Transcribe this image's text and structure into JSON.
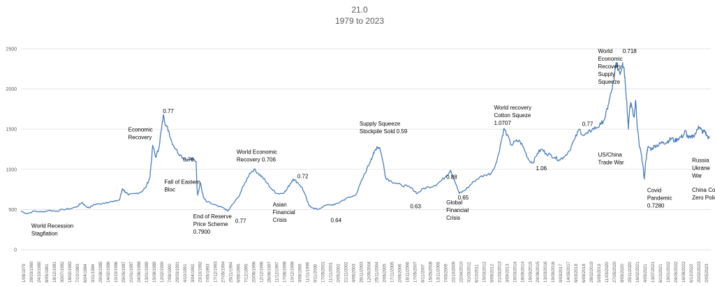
{
  "chart_data": {
    "type": "line",
    "title": "21.0",
    "subtitle": "1979 to 2023",
    "xlabel": "",
    "ylabel": "",
    "ylim": [
      0,
      2500
    ],
    "yticks": [
      0,
      500,
      1000,
      1500,
      2000,
      2500
    ],
    "grid": true,
    "legend": "none",
    "line_color": "#4a7ebb",
    "x_range": [
      "1/08/1979",
      "2/05/2023"
    ],
    "xticks": [
      "1/08/1979",
      "28/03/1980",
      "24/10/1980",
      "8/05/1981",
      "18/12/1981",
      "30/07/1982",
      "18/02/1983",
      "7/10/1983",
      "6/04/1984",
      "3/11/1984",
      "29/08/1985",
      "14/02/1986",
      "10/10/1986",
      "29/05/1987",
      "21/01/1987",
      "24/06/1988",
      "13/01/1989",
      "15/08/1989",
      "12/02/1990",
      "7/09/1990",
      "29/03/1991",
      "4/10/1991",
      "3/04/1992",
      "23/10/1992",
      "7/05/1993",
      "17/12/1993",
      "27/05/1994",
      "25/11/1994",
      "9/06/1995",
      "7/12/1995",
      "20/06/1996",
      "12/12/1996",
      "26/06/1997",
      "11/12/1997",
      "17/06/1998",
      "10/12/1998",
      "3/06/1999",
      "11/11/1999",
      "9/11/2000",
      "17/05/2001",
      "11/11/2001",
      "2/05/2002",
      "21/11/2002",
      "4/06/2003",
      "26/11/2003",
      "12/05/2004",
      "25/11/2004",
      "2/06/2005",
      "17/11/2005",
      "2/06/2006",
      "16/11/2006",
      "17/05/2007",
      "8/11/2007",
      "15/05/2008",
      "13/11/2008",
      "7/05/2009",
      "22/10/2009",
      "22/04/2010",
      "31/03/2011",
      "6/10/2011",
      "15/03/2012",
      "9/09/2012",
      "21/03/2013",
      "3/09/2013",
      "19/03/2014",
      "18/09/2014",
      "19/03/2015",
      "24/08/2015",
      "13/03/2016",
      "19/09/2016",
      "9/03/2017",
      "14/09/2017",
      "8/03/2018",
      "6/09/2018",
      "28/02/2019",
      "5/09/2019",
      "11/03/2020",
      "27/05/2020",
      "8/09/2020",
      "25/11/2020",
      "16/02/2021",
      "4/05/2021",
      "13/07/2021",
      "6/10/2021",
      "19/01/2022",
      "24/05/2022",
      "16/08/2022",
      "6/12/2022",
      "20/02/2023",
      "2/05/2023"
    ],
    "series": [
      {
        "values": [
          [
            1979.58,
            480
          ],
          [
            1980.0,
            450
          ],
          [
            1980.5,
            480
          ],
          [
            1981.0,
            470
          ],
          [
            1981.5,
            490
          ],
          [
            1982.0,
            480
          ],
          [
            1982.5,
            500
          ],
          [
            1983.0,
            510
          ],
          [
            1983.5,
            540
          ],
          [
            1983.8,
            590
          ],
          [
            1984.0,
            550
          ],
          [
            1984.3,
            520
          ],
          [
            1984.6,
            560
          ],
          [
            1985.0,
            570
          ],
          [
            1985.5,
            590
          ],
          [
            1986.0,
            600
          ],
          [
            1986.4,
            620
          ],
          [
            1986.6,
            760
          ],
          [
            1986.8,
            720
          ],
          [
            1987.0,
            680
          ],
          [
            1987.5,
            700
          ],
          [
            1987.9,
            720
          ],
          [
            1988.2,
            770
          ],
          [
            1988.5,
            900
          ],
          [
            1988.7,
            1300
          ],
          [
            1988.9,
            1150
          ],
          [
            1989.1,
            1250
          ],
          [
            1989.3,
            1500
          ],
          [
            1989.45,
            1680
          ],
          [
            1989.6,
            1550
          ],
          [
            1989.8,
            1480
          ],
          [
            1990.0,
            1350
          ],
          [
            1990.3,
            1250
          ],
          [
            1990.6,
            1180
          ],
          [
            1990.9,
            1130
          ],
          [
            1991.2,
            1120
          ],
          [
            1991.5,
            1120
          ],
          [
            1991.7,
            1100
          ],
          [
            1991.75,
            800
          ],
          [
            1991.8,
            680
          ],
          [
            1992.0,
            830
          ],
          [
            1992.2,
            650
          ],
          [
            1992.4,
            600
          ],
          [
            1992.8,
            570
          ],
          [
            1993.2,
            540
          ],
          [
            1993.6,
            520
          ],
          [
            1993.9,
            480
          ],
          [
            1994.2,
            560
          ],
          [
            1994.6,
            650
          ],
          [
            1995.0,
            800
          ],
          [
            1995.4,
            950
          ],
          [
            1995.7,
            1000
          ],
          [
            1996.0,
            950
          ],
          [
            1996.3,
            900
          ],
          [
            1996.6,
            830
          ],
          [
            1997.0,
            740
          ],
          [
            1997.3,
            700
          ],
          [
            1997.6,
            700
          ],
          [
            1997.9,
            730
          ],
          [
            1998.2,
            820
          ],
          [
            1998.4,
            880
          ],
          [
            1998.7,
            840
          ],
          [
            1999.0,
            780
          ],
          [
            1999.2,
            700
          ],
          [
            1999.5,
            550
          ],
          [
            1999.8,
            520
          ],
          [
            2000.1,
            500
          ],
          [
            2000.5,
            540
          ],
          [
            2000.9,
            560
          ],
          [
            2001.3,
            560
          ],
          [
            2001.7,
            600
          ],
          [
            2002.1,
            640
          ],
          [
            2002.5,
            660
          ],
          [
            2002.8,
            700
          ],
          [
            2003.2,
            880
          ],
          [
            2003.5,
            1000
          ],
          [
            2003.8,
            1130
          ],
          [
            2004.0,
            1200
          ],
          [
            2004.2,
            1280
          ],
          [
            2004.4,
            1270
          ],
          [
            2004.6,
            1120
          ],
          [
            2004.8,
            900
          ],
          [
            2005.1,
            860
          ],
          [
            2005.5,
            830
          ],
          [
            2005.9,
            800
          ],
          [
            2006.3,
            790
          ],
          [
            2006.7,
            750
          ],
          [
            2007.0,
            700
          ],
          [
            2007.4,
            760
          ],
          [
            2007.8,
            780
          ],
          [
            2008.2,
            800
          ],
          [
            2008.6,
            850
          ],
          [
            2009.0,
            920
          ],
          [
            2009.3,
            990
          ],
          [
            2009.6,
            850
          ],
          [
            2009.9,
            700
          ],
          [
            2010.2,
            730
          ],
          [
            2010.6,
            790
          ],
          [
            2010.9,
            850
          ],
          [
            2011.3,
            900
          ],
          [
            2011.7,
            930
          ],
          [
            2012.1,
            950
          ],
          [
            2012.5,
            1100
          ],
          [
            2012.8,
            1350
          ],
          [
            2013.0,
            1510
          ],
          [
            2013.2,
            1430
          ],
          [
            2013.5,
            1300
          ],
          [
            2013.8,
            1350
          ],
          [
            2014.1,
            1350
          ],
          [
            2014.4,
            1250
          ],
          [
            2014.7,
            1120
          ],
          [
            2015.0,
            1080
          ],
          [
            2015.3,
            1200
          ],
          [
            2015.6,
            1250
          ],
          [
            2015.9,
            1200
          ],
          [
            2016.2,
            1180
          ],
          [
            2016.5,
            1150
          ],
          [
            2016.8,
            1120
          ],
          [
            2017.1,
            1150
          ],
          [
            2017.5,
            1230
          ],
          [
            2017.9,
            1380
          ],
          [
            2018.2,
            1500
          ],
          [
            2018.5,
            1420
          ],
          [
            2018.8,
            1450
          ],
          [
            2019.1,
            1500
          ],
          [
            2019.4,
            1520
          ],
          [
            2019.7,
            1560
          ],
          [
            2020.0,
            1650
          ],
          [
            2020.2,
            1800
          ],
          [
            2020.4,
            1950
          ],
          [
            2020.6,
            2100
          ],
          [
            2020.75,
            2330
          ],
          [
            2020.9,
            2250
          ],
          [
            2021.05,
            2200
          ],
          [
            2021.2,
            2330
          ],
          [
            2021.3,
            2260
          ],
          [
            2021.4,
            2050
          ],
          [
            2021.5,
            1800
          ],
          [
            2021.6,
            1500
          ],
          [
            2021.7,
            1780
          ],
          [
            2021.8,
            1820
          ],
          [
            2022.0,
            1650
          ],
          [
            2022.1,
            1860
          ],
          [
            2022.2,
            1550
          ],
          [
            2022.35,
            1300
          ],
          [
            2022.5,
            1180
          ],
          [
            2022.6,
            1050
          ],
          [
            2022.7,
            880
          ],
          [
            2022.8,
            1100
          ],
          [
            2022.9,
            1240
          ],
          [
            2023.0,
            1280
          ],
          [
            2023.2,
            1250
          ],
          [
            2023.4,
            1290
          ],
          [
            2023.6,
            1300
          ],
          [
            2023.8,
            1320
          ],
          [
            2024.0,
            1340
          ],
          [
            2024.2,
            1330
          ],
          [
            2024.4,
            1360
          ],
          [
            2024.6,
            1390
          ],
          [
            2024.8,
            1350
          ],
          [
            2025.0,
            1380
          ],
          [
            2025.2,
            1400
          ],
          [
            2025.4,
            1420
          ],
          [
            2025.55,
            1480
          ],
          [
            2025.7,
            1400
          ],
          [
            2025.9,
            1390
          ],
          [
            2026.1,
            1420
          ],
          [
            2026.3,
            1460
          ],
          [
            2026.45,
            1540
          ],
          [
            2026.6,
            1500
          ],
          [
            2026.75,
            1460
          ],
          [
            2026.9,
            1480
          ],
          [
            2027.0,
            1420
          ],
          [
            2027.2,
            1390
          ]
        ]
      }
    ],
    "annotations": [
      {
        "lines": [
          "World Recession",
          "Stagflation"
        ],
        "year": 1980.3,
        "value": 275
      },
      {
        "lines": [
          "Economic",
          "Recovery"
        ],
        "year": 1987.0,
        "value": 1470
      },
      {
        "lines": [
          "0.77"
        ],
        "year": 1989.4,
        "value": 1700
      },
      {
        "lines": [
          "0.79"
        ],
        "year": 1990.8,
        "value": 1100
      },
      {
        "lines": [
          "Fall of Eastern",
          "Bloc"
        ],
        "year": 1989.5,
        "value": 820
      },
      {
        "lines": [
          "End  of Reserve",
          "Price Scheme",
          "0.7900"
        ],
        "year": 1991.5,
        "value": 390
      },
      {
        "lines": [
          "World Economic",
          "Recovery  0.706"
        ],
        "year": 1994.5,
        "value": 1195
      },
      {
        "lines": [
          "0.77"
        ],
        "year": 1994.4,
        "value": 335
      },
      {
        "lines": [
          "Asian",
          "Financial",
          "Crisis"
        ],
        "year": 1997.0,
        "value": 540
      },
      {
        "lines": [
          "0.72"
        ],
        "year": 1998.7,
        "value": 890
      },
      {
        "lines": [
          "0.64"
        ],
        "year": 2001.0,
        "value": 345
      },
      {
        "lines": [
          "Supply Squeeze",
          "Stockpile Sold  0.59"
        ],
        "year": 2003.0,
        "value": 1545
      },
      {
        "lines": [
          "0.63"
        ],
        "year": 2006.5,
        "value": 515
      },
      {
        "lines": [
          "0.88"
        ],
        "year": 2009.0,
        "value": 880
      },
      {
        "lines": [
          "0.65"
        ],
        "year": 2009.8,
        "value": 625
      },
      {
        "lines": [
          "Global",
          "Financial",
          "Crisis"
        ],
        "year": 2009.0,
        "value": 565
      },
      {
        "lines": [
          "World recovery",
          "Cotton Squeze",
          "1.0707"
        ],
        "year": 2012.3,
        "value": 1745
      },
      {
        "lines": [
          "1.06"
        ],
        "year": 2015.2,
        "value": 990
      },
      {
        "lines": [
          "0.77"
        ],
        "year": 2018.4,
        "value": 1540
      },
      {
        "lines": [
          "World",
          "Economic",
          "Recovery",
          "Supply",
          "Squeeze"
        ],
        "year": 2019.5,
        "value": 2450
      },
      {
        "lines": [
          "0.718"
        ],
        "year": 2021.2,
        "value": 2450
      },
      {
        "lines": [
          "US/China",
          "Trade  War"
        ],
        "year": 2019.5,
        "value": 1160
      },
      {
        "lines": [
          "Covid",
          "Pandemic",
          "0.7280"
        ],
        "year": 2022.9,
        "value": 715
      },
      {
        "lines": [
          "Russia",
          "Ukrane",
          "War"
        ],
        "year": 2026.0,
        "value": 1090
      },
      {
        "lines": [
          "China Covid",
          "Zero Policy"
        ],
        "year": 2026.0,
        "value": 720
      }
    ]
  }
}
